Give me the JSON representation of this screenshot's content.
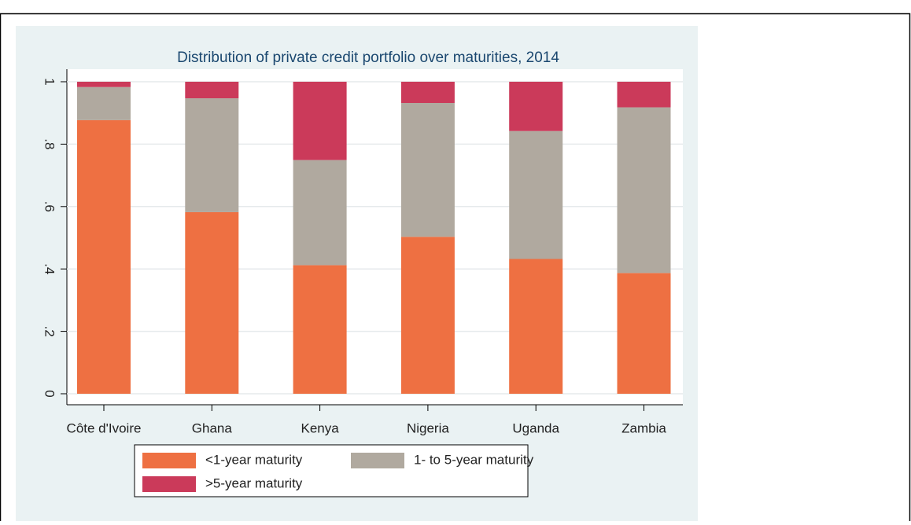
{
  "chart_data": {
    "type": "stacked_bar",
    "title": "Distribution of private credit portfolio over maturities, 2014",
    "categories": [
      "Côte d'Ivoire",
      "Ghana",
      "Kenya",
      "Nigeria",
      "Uganda",
      "Zambia"
    ],
    "series": [
      {
        "name": "<1-year maturity",
        "color": "#ee7042",
        "values": [
          0.877,
          0.582,
          0.412,
          0.503,
          0.432,
          0.387
        ]
      },
      {
        "name": "1- to 5-year maturity",
        "color": "#b0a99f",
        "values": [
          0.106,
          0.365,
          0.337,
          0.429,
          0.41,
          0.531
        ]
      },
      {
        "name": ">5-year maturity",
        "color": "#cb3a5a",
        "values": [
          0.017,
          0.053,
          0.251,
          0.068,
          0.158,
          0.082
        ]
      }
    ],
    "ylim": [
      0,
      1
    ],
    "yticks": [
      0,
      {
        "value": 0.2,
        "label": ".2"
      },
      {
        "value": 0.4,
        "label": ".4"
      },
      {
        "value": 0.6,
        "label": ".6"
      },
      {
        "value": 0.8,
        "label": ".8"
      },
      1
    ],
    "grid": true
  }
}
